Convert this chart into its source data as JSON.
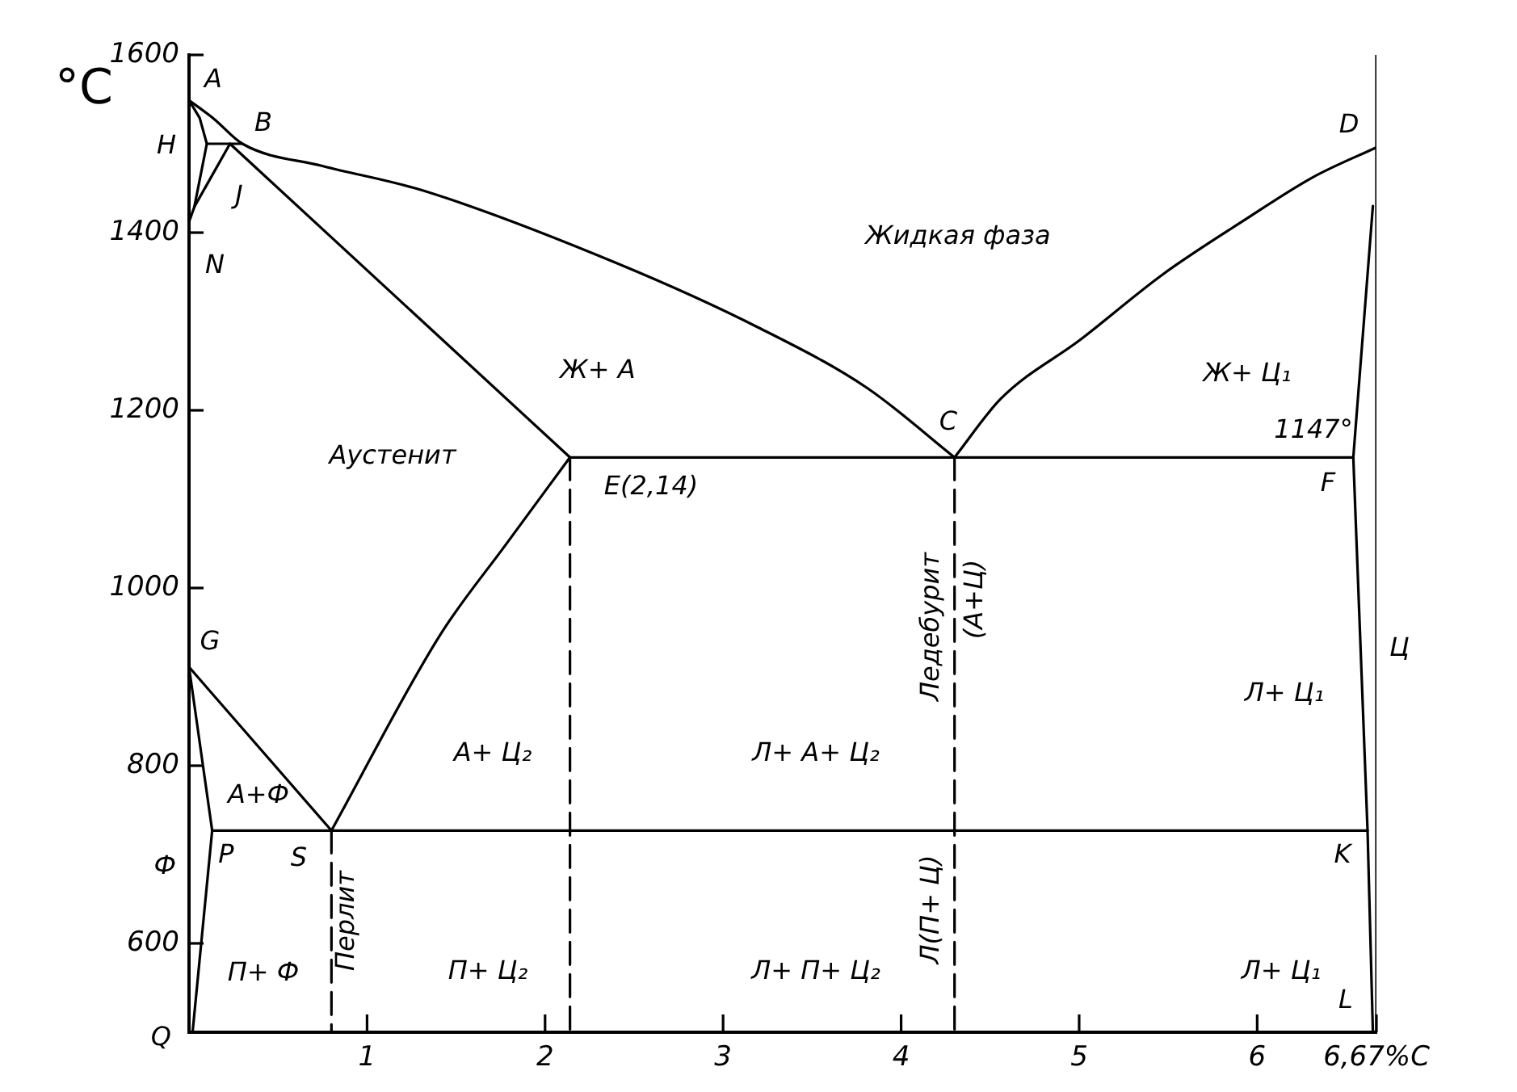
{
  "chart_data": {
    "type": "line",
    "ylabel": "°C",
    "xlim": [
      0,
      6.67
    ],
    "ylim": [
      500,
      1600
    ],
    "xticks": [
      1,
      2,
      3,
      4,
      5,
      6,
      {
        "value": 6.67,
        "label": "6,67%C"
      }
    ],
    "yticks": [
      600,
      800,
      1000,
      1200,
      1400,
      1600
    ],
    "series": [
      {
        "color": "#000000",
        "x": [
          0,
          0.14,
          0.3,
          0.75,
          1.32,
          2.41,
          3.2,
          3.81,
          4.3
        ],
        "values": [
          1549,
          1528,
          1500,
          1475,
          1447,
          1365,
          1293,
          1225,
          1147
        ]
      },
      {
        "color": "#000000",
        "x": [
          4.3,
          4.56,
          5.01,
          5.47,
          5.92,
          6.31,
          6.67
        ],
        "values": [
          1147,
          1213,
          1280,
          1353,
          1413,
          1462,
          1496
        ]
      },
      {
        "color": "#000000",
        "x": [
          0,
          0.06,
          0.1,
          0.03,
          0
        ],
        "values": [
          1549,
          1529,
          1500,
          1429,
          1412
        ]
      },
      {
        "color": "#000000",
        "x": [
          0.1,
          0.3
        ],
        "values": [
          1500,
          1500
        ]
      },
      {
        "color": "#000000",
        "x": [
          0.03,
          0.23,
          2.14
        ],
        "values": [
          1429,
          1500,
          1147
        ]
      },
      {
        "color": "#000000",
        "x": [
          2.14,
          6.54
        ],
        "values": [
          1147,
          1147
        ]
      },
      {
        "color": "#000000",
        "x": [
          0.8,
          1.41,
          1.78,
          2.14
        ],
        "values": [
          727,
          947,
          1049,
          1147
        ]
      },
      {
        "color": "#000000",
        "x": [
          0,
          0.8
        ],
        "values": [
          911,
          727
        ]
      },
      {
        "color": "#000000",
        "x": [
          0,
          0.13,
          0.02
        ],
        "values": [
          911,
          727,
          500
        ]
      },
      {
        "color": "#000000",
        "x": [
          0.13,
          6.62
        ],
        "values": [
          727,
          727
        ]
      },
      {
        "color": "#000000",
        "x": [
          6.65,
          6.54,
          6.62,
          6.65
        ],
        "values": [
          1430,
          1147,
          727,
          500
        ]
      },
      {
        "color": "#000000",
        "x": [
          6.67,
          6.67
        ],
        "values": [
          500,
          1600
        ]
      },
      {
        "color": "#000000",
        "line_style": "dashed",
        "x": [
          0.8,
          0.8
        ],
        "values": [
          727,
          500
        ]
      },
      {
        "color": "#000000",
        "line_style": "dashed",
        "x": [
          2.14,
          2.14
        ],
        "values": [
          1147,
          500
        ]
      },
      {
        "color": "#000000",
        "line_style": "dashed",
        "x": [
          4.3,
          4.3
        ],
        "values": [
          1147,
          500
        ]
      }
    ],
    "annotations": [
      "A",
      "H",
      "B",
      "J",
      "N",
      "Жидкая фаза",
      "D",
      "Ж+ А",
      "Ж+ Ц₁",
      "C",
      "1147°",
      "Аустенит",
      "E(2,14)",
      "F",
      "G",
      "Ледебурит",
      "(А+Ц)",
      "Ц",
      "Л+ Ц₁",
      "А+ Ц₂",
      "Л+ А+ Ц₂",
      "А+Ф",
      "Ф",
      "P",
      "S",
      "K",
      "Перлит",
      "Л(П+ Ц)",
      "П+ Ф",
      "П+ Ц₂",
      "Л+ П+ Ц₂",
      "Л+ Ц₁",
      "L",
      "Q"
    ]
  }
}
